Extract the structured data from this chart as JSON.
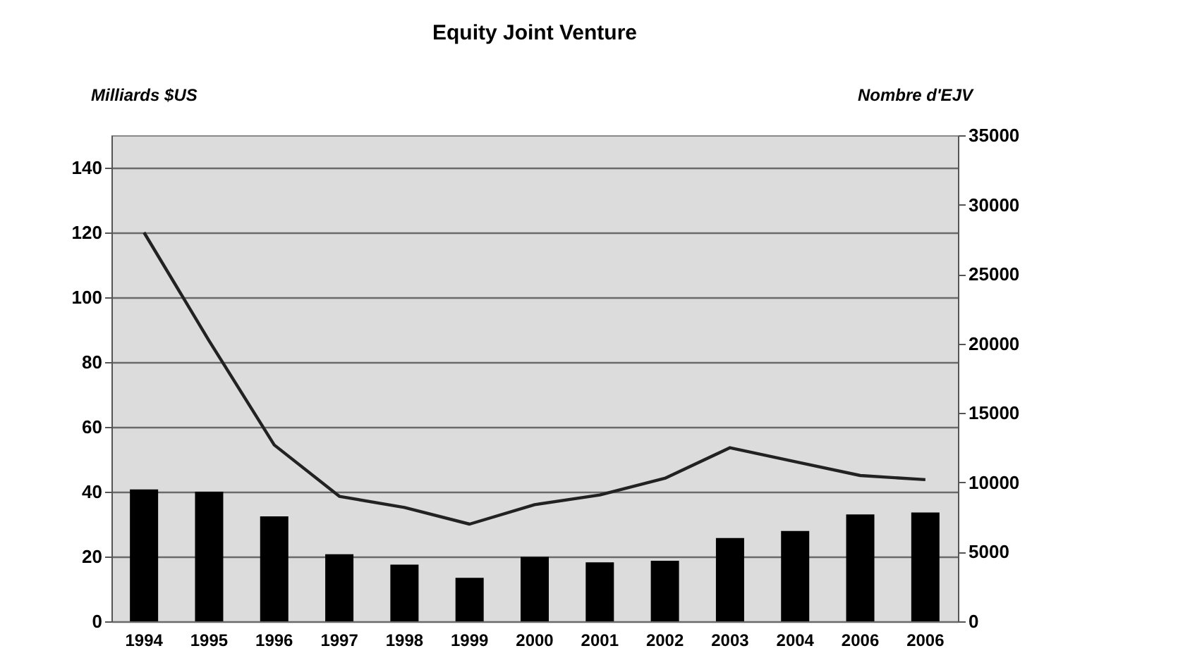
{
  "chart_data": {
    "type": "bar",
    "title": "Equity Joint Venture",
    "ylabel": "Milliards $US",
    "y2label": "Nombre d'EJV",
    "categories": [
      "1994",
      "1995",
      "1996",
      "1997",
      "1998",
      "1999",
      "2000",
      "2001",
      "2002",
      "2003",
      "2004",
      "2006",
      "2006"
    ],
    "series": [
      {
        "color": "#000000",
        "values": [
          40.7,
          40,
          32.4,
          20.7,
          17.5,
          13.4,
          19.9,
          18.2,
          18.7,
          25.7,
          27.9,
          33,
          33.6
        ]
      },
      {
        "type": "line",
        "axis": "y2",
        "color": "#222222",
        "values": [
          28000,
          20200,
          12700,
          9000,
          8200,
          7000,
          8400,
          9100,
          10300,
          12500,
          11500,
          10500,
          10200
        ]
      }
    ],
    "ylim": [
      0,
      150
    ],
    "yticks": [
      0,
      20,
      40,
      60,
      80,
      100,
      120,
      140
    ],
    "y2lim": [
      0,
      35000
    ],
    "y2ticks": [
      0,
      5000,
      10000,
      15000,
      20000,
      25000,
      30000,
      35000
    ],
    "grid": "y",
    "legend": false,
    "marker": "none",
    "line_style": "solid"
  }
}
